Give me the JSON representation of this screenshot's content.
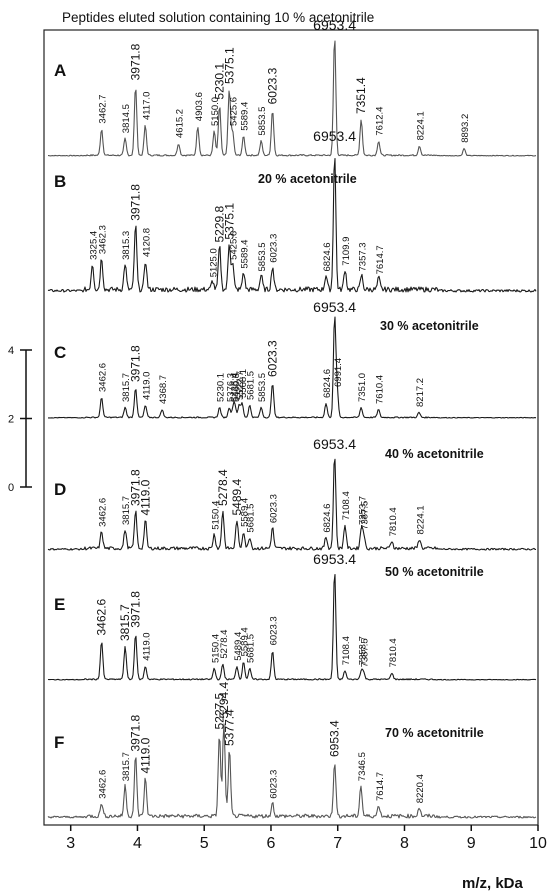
{
  "chart_data": {
    "type": "line",
    "title": "Peptides eluted solution containing 10 % acetonitrile",
    "xlabel": "m/z, kDa",
    "xlim": [
      2.6,
      10.0
    ],
    "x_ticks": [
      "3",
      "4",
      "5",
      "6",
      "7",
      "8",
      "9",
      "10"
    ],
    "scale_bar": {
      "ticks": [
        "4",
        "2",
        "0"
      ]
    },
    "panels": [
      {
        "letter": "A",
        "condition": "",
        "peaks": [
          {
            "mz": 3.4627,
            "h": 0.22,
            "label": "3462.7"
          },
          {
            "mz": 3.8145,
            "h": 0.14,
            "label": "3814.5"
          },
          {
            "mz": 3.9718,
            "h": 0.58,
            "label": "3971.8"
          },
          {
            "mz": 4.117,
            "h": 0.25,
            "label": "4117.0"
          },
          {
            "mz": 4.6152,
            "h": 0.1,
            "label": "4615.2"
          },
          {
            "mz": 4.9036,
            "h": 0.24,
            "label": "4903.6"
          },
          {
            "mz": 5.15,
            "h": 0.2,
            "label": "5150.0"
          },
          {
            "mz": 5.2301,
            "h": 0.42,
            "label": "5230.1"
          },
          {
            "mz": 5.3751,
            "h": 0.55,
            "label": "5375.1"
          },
          {
            "mz": 5.4256,
            "h": 0.2,
            "label": "5425.6"
          },
          {
            "mz": 5.5894,
            "h": 0.16,
            "label": "5589.4"
          },
          {
            "mz": 5.8535,
            "h": 0.12,
            "label": "5853.5"
          },
          {
            "mz": 6.0233,
            "h": 0.38,
            "label": "6023.3"
          },
          {
            "mz": 6.9534,
            "h": 1.0,
            "label": "6953.4"
          },
          {
            "mz": 7.3514,
            "h": 0.3,
            "label": "7351.4"
          },
          {
            "mz": 7.6124,
            "h": 0.12,
            "label": "7612.4"
          },
          {
            "mz": 8.2241,
            "h": 0.08,
            "label": "8224.1"
          },
          {
            "mz": 8.8932,
            "h": 0.06,
            "label": "8893.2"
          }
        ]
      },
      {
        "letter": "B",
        "condition": "20 % acetonitrile",
        "peaks": [
          {
            "mz": 3.3254,
            "h": 0.18,
            "label": "3325.4"
          },
          {
            "mz": 3.4623,
            "h": 0.22,
            "label": "3462.3"
          },
          {
            "mz": 3.8153,
            "h": 0.18,
            "label": "3815.3"
          },
          {
            "mz": 3.9718,
            "h": 0.45,
            "label": "3971.8"
          },
          {
            "mz": 4.1208,
            "h": 0.2,
            "label": "4120.8"
          },
          {
            "mz": 5.125,
            "h": 0.06,
            "label": "5125.0"
          },
          {
            "mz": 5.2298,
            "h": 0.3,
            "label": "5229.8"
          },
          {
            "mz": 5.3751,
            "h": 0.32,
            "label": "5375.1"
          },
          {
            "mz": 5.4256,
            "h": 0.18,
            "label": "5425.6"
          },
          {
            "mz": 5.5894,
            "h": 0.12,
            "label": "5589.4"
          },
          {
            "mz": 5.8535,
            "h": 0.1,
            "label": "5853.5"
          },
          {
            "mz": 6.0233,
            "h": 0.16,
            "label": "6023.3"
          },
          {
            "mz": 6.8246,
            "h": 0.1,
            "label": "6824.6"
          },
          {
            "mz": 6.9534,
            "h": 0.95,
            "label": "6953.4"
          },
          {
            "mz": 7.1099,
            "h": 0.14,
            "label": "7109.9"
          },
          {
            "mz": 7.3573,
            "h": 0.1,
            "label": "7357.3"
          },
          {
            "mz": 7.6147,
            "h": 0.08,
            "label": "7614.7"
          }
        ]
      },
      {
        "letter": "C",
        "condition": "30 % acetonitrile",
        "peaks": [
          {
            "mz": 3.4626,
            "h": 0.2,
            "label": "3462.6"
          },
          {
            "mz": 3.8157,
            "h": 0.1,
            "label": "3815.7"
          },
          {
            "mz": 3.9718,
            "h": 0.3,
            "label": "3971.8"
          },
          {
            "mz": 4.119,
            "h": 0.12,
            "label": "4119.0"
          },
          {
            "mz": 4.3687,
            "h": 0.08,
            "label": "4368.7"
          },
          {
            "mz": 5.2301,
            "h": 0.1,
            "label": "5230.1"
          },
          {
            "mz": 5.3763,
            "h": 0.1,
            "label": "5376.3"
          },
          {
            "mz": 5.4364,
            "h": 0.1,
            "label": "5436.4"
          },
          {
            "mz": 5.4608,
            "h": 0.1,
            "label": "5460.8"
          },
          {
            "mz": 5.5227,
            "h": 0.12,
            "label": "5522.7"
          },
          {
            "mz": 5.5681,
            "h": 0.14,
            "label": "5568.1"
          },
          {
            "mz": 5.6815,
            "h": 0.12,
            "label": "5681.5"
          },
          {
            "mz": 5.8535,
            "h": 0.1,
            "label": "5853.5"
          },
          {
            "mz": 6.0233,
            "h": 0.35,
            "label": "6023.3"
          },
          {
            "mz": 6.8246,
            "h": 0.14,
            "label": "6824.6"
          },
          {
            "mz": 6.9534,
            "h": 1.0,
            "label": "6953.4"
          },
          {
            "mz": 6.9914,
            "h": 0.25,
            "label": "6991.4"
          },
          {
            "mz": 7.351,
            "h": 0.1,
            "label": "7351.0"
          },
          {
            "mz": 7.6104,
            "h": 0.08,
            "label": "7610.4"
          },
          {
            "mz": 8.2172,
            "h": 0.05,
            "label": "8217.2"
          }
        ]
      },
      {
        "letter": "D",
        "condition": "40 % acetonitrile",
        "peaks": [
          {
            "mz": 3.4626,
            "h": 0.18,
            "label": "3462.6"
          },
          {
            "mz": 3.8157,
            "h": 0.2,
            "label": "3815.7"
          },
          {
            "mz": 3.9718,
            "h": 0.4,
            "label": "3971.8"
          },
          {
            "mz": 4.119,
            "h": 0.3,
            "label": "4119.0"
          },
          {
            "mz": 5.1504,
            "h": 0.15,
            "label": "5150.4"
          },
          {
            "mz": 5.2784,
            "h": 0.4,
            "label": "5278.4"
          },
          {
            "mz": 5.4894,
            "h": 0.3,
            "label": "5489.4"
          },
          {
            "mz": 5.5894,
            "h": 0.18,
            "label": "5589.4"
          },
          {
            "mz": 5.6815,
            "h": 0.12,
            "label": "5681.5"
          },
          {
            "mz": 6.0233,
            "h": 0.22,
            "label": "6023.3"
          },
          {
            "mz": 6.8246,
            "h": 0.12,
            "label": "6824.6"
          },
          {
            "mz": 6.9534,
            "h": 1.0,
            "label": "6953.4"
          },
          {
            "mz": 7.1084,
            "h": 0.25,
            "label": "7108.4"
          },
          {
            "mz": 7.3537,
            "h": 0.2,
            "label": "7353.7"
          },
          {
            "mz": 7.3875,
            "h": 0.15,
            "label": "7387.5"
          },
          {
            "mz": 7.8104,
            "h": 0.08,
            "label": "7810.4"
          },
          {
            "mz": 8.2241,
            "h": 0.1,
            "label": "8224.1"
          }
        ]
      },
      {
        "letter": "E",
        "condition": "50 % acetonitrile",
        "peaks": [
          {
            "mz": 3.4626,
            "h": 0.35,
            "label": "3462.6"
          },
          {
            "mz": 3.8157,
            "h": 0.3,
            "label": "3815.7"
          },
          {
            "mz": 3.9718,
            "h": 0.42,
            "label": "3971.8"
          },
          {
            "mz": 4.119,
            "h": 0.12,
            "label": "4119.0"
          },
          {
            "mz": 5.1504,
            "h": 0.1,
            "label": "5150.4"
          },
          {
            "mz": 5.2784,
            "h": 0.14,
            "label": "5278.4"
          },
          {
            "mz": 5.4894,
            "h": 0.12,
            "label": "5489.4"
          },
          {
            "mz": 5.5894,
            "h": 0.16,
            "label": "5589.4"
          },
          {
            "mz": 5.6815,
            "h": 0.1,
            "label": "5681.5"
          },
          {
            "mz": 6.0233,
            "h": 0.26,
            "label": "6023.3"
          },
          {
            "mz": 6.9534,
            "h": 1.0,
            "label": "6953.4"
          },
          {
            "mz": 7.1084,
            "h": 0.08,
            "label": "7108.4"
          },
          {
            "mz": 7.3537,
            "h": 0.08,
            "label": "7353.7"
          },
          {
            "mz": 7.3875,
            "h": 0.06,
            "label": "7387.5"
          },
          {
            "mz": 7.8104,
            "h": 0.06,
            "label": "7810.4"
          }
        ]
      },
      {
        "letter": "F",
        "condition": "70 % acetonitrile",
        "peaks": [
          {
            "mz": 3.4626,
            "h": 0.12,
            "label": "3462.6"
          },
          {
            "mz": 3.8157,
            "h": 0.28,
            "label": "3815.7"
          },
          {
            "mz": 3.9718,
            "h": 0.55,
            "label": "3971.8"
          },
          {
            "mz": 4.119,
            "h": 0.35,
            "label": "4119.0"
          },
          {
            "mz": 5.2275,
            "h": 0.75,
            "label": "5227.5"
          },
          {
            "mz": 5.2944,
            "h": 0.85,
            "label": "5294.4"
          },
          {
            "mz": 5.3774,
            "h": 0.6,
            "label": "5377.4"
          },
          {
            "mz": 6.0233,
            "h": 0.12,
            "label": "6023.3"
          },
          {
            "mz": 6.9534,
            "h": 0.5,
            "label": "6953.4"
          },
          {
            "mz": 7.3465,
            "h": 0.28,
            "label": "7346.5"
          },
          {
            "mz": 7.6147,
            "h": 0.1,
            "label": "7614.7"
          },
          {
            "mz": 8.2204,
            "h": 0.08,
            "label": "8220.4"
          }
        ]
      }
    ]
  }
}
